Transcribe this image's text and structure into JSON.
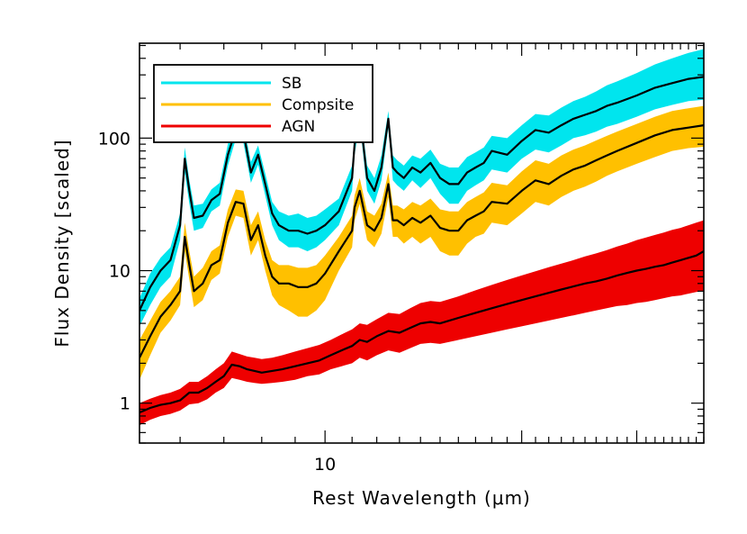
{
  "chart_data": {
    "type": "line",
    "xlabel": "Rest Wavelength (μm)",
    "ylabel": "Flux Density [scaled]",
    "x_scale": "log",
    "y_scale": "log",
    "xlim": [
      5.2,
      38
    ],
    "ylim": [
      0.5,
      520
    ],
    "x_tick_labels": [
      {
        "value": 10,
        "label": "10"
      }
    ],
    "y_tick_labels": [
      {
        "value": 1,
        "label": "1"
      },
      {
        "value": 10,
        "label": "10"
      },
      {
        "value": 100,
        "label": "100"
      }
    ],
    "grid": false,
    "legend_position": "top-left",
    "series": [
      {
        "name": "SB",
        "color": "#00e5ee",
        "line_color": "#000000",
        "x": [
          5.2,
          5.4,
          5.6,
          5.8,
          6.0,
          6.1,
          6.2,
          6.3,
          6.5,
          6.7,
          6.9,
          7.1,
          7.3,
          7.5,
          7.7,
          7.9,
          8.1,
          8.3,
          8.5,
          8.8,
          9.1,
          9.4,
          9.7,
          10.0,
          10.5,
          11.0,
          11.1,
          11.3,
          11.6,
          11.9,
          12.2,
          12.5,
          12.7,
          12.9,
          13.2,
          13.6,
          14.0,
          14.5,
          15.0,
          15.5,
          16.0,
          16.5,
          17.0,
          17.5,
          18.0,
          19.0,
          20.0,
          21.0,
          22.0,
          23.0,
          24.0,
          25.0,
          26.0,
          27.0,
          28.0,
          30.0,
          32.0,
          34.0,
          36.0,
          38.0
        ],
        "values": [
          5,
          7.5,
          10,
          12,
          22,
          70,
          40,
          25,
          26,
          34,
          38,
          75,
          115,
          110,
          55,
          75,
          45,
          27,
          22,
          20,
          20,
          19,
          20,
          22,
          28,
          50,
          90,
          155,
          50,
          40,
          60,
          140,
          60,
          55,
          50,
          60,
          55,
          65,
          50,
          45,
          45,
          55,
          60,
          65,
          80,
          75,
          95,
          115,
          110,
          125,
          140,
          150,
          160,
          175,
          185,
          210,
          240,
          260,
          280,
          290
        ],
        "band_lower": [
          3.8,
          5.5,
          7.5,
          9,
          17,
          55,
          32,
          20,
          21,
          28,
          31,
          62,
          98,
          92,
          46,
          63,
          37,
          22,
          17,
          15,
          15,
          14,
          15,
          17,
          22,
          40,
          75,
          130,
          40,
          32,
          48,
          120,
          48,
          44,
          40,
          48,
          42,
          50,
          38,
          32,
          32,
          40,
          44,
          48,
          58,
          55,
          70,
          82,
          78,
          88,
          100,
          105,
          112,
          122,
          128,
          145,
          165,
          178,
          190,
          195
        ],
        "band_upper": [
          6.2,
          9.5,
          12.5,
          15,
          27,
          85,
          48,
          31,
          32,
          41,
          46,
          90,
          132,
          128,
          66,
          88,
          54,
          33,
          28,
          26,
          27,
          25,
          26,
          29,
          35,
          62,
          105,
          175,
          62,
          50,
          74,
          160,
          74,
          68,
          62,
          74,
          70,
          82,
          64,
          60,
          60,
          72,
          78,
          85,
          104,
          100,
          125,
          152,
          148,
          170,
          190,
          205,
          225,
          250,
          268,
          310,
          360,
          400,
          440,
          470
        ]
      },
      {
        "name": "Compsite",
        "color": "#ffc000",
        "line_color": "#000000",
        "x": [
          5.2,
          5.4,
          5.6,
          5.8,
          6.0,
          6.1,
          6.2,
          6.3,
          6.5,
          6.7,
          6.9,
          7.1,
          7.3,
          7.5,
          7.7,
          7.9,
          8.1,
          8.3,
          8.5,
          8.8,
          9.1,
          9.4,
          9.7,
          10.0,
          10.5,
          11.0,
          11.1,
          11.3,
          11.6,
          11.9,
          12.2,
          12.5,
          12.7,
          12.9,
          13.2,
          13.6,
          14.0,
          14.5,
          15.0,
          15.5,
          16.0,
          16.5,
          17.0,
          17.5,
          18.0,
          19.0,
          20.0,
          21.0,
          22.0,
          23.0,
          24.0,
          25.0,
          26.0,
          27.0,
          28.0,
          30.0,
          32.0,
          34.0,
          36.0,
          38.0
        ],
        "values": [
          2.2,
          3.2,
          4.5,
          5.5,
          7,
          18,
          11,
          7,
          8,
          11,
          12,
          23,
          33,
          32,
          17,
          22,
          13,
          9,
          8,
          8,
          7.5,
          7.5,
          8,
          9.5,
          14,
          20,
          30,
          40,
          22,
          20,
          25,
          45,
          24,
          24,
          22,
          25,
          23,
          26,
          21,
          20,
          20,
          24,
          26,
          28,
          33,
          32,
          40,
          48,
          45,
          52,
          58,
          62,
          68,
          74,
          80,
          92,
          105,
          115,
          120,
          125
        ],
        "band_lower": [
          1.5,
          2.3,
          3.4,
          4.2,
          5.5,
          14,
          8.5,
          5.3,
          6,
          8.5,
          9.5,
          18,
          26,
          25,
          13,
          17,
          10,
          6.5,
          5.5,
          5,
          4.5,
          4.5,
          5,
          6,
          10,
          15,
          24,
          32,
          17,
          15,
          19,
          36,
          18,
          18,
          16,
          18,
          16,
          18,
          14,
          13,
          13,
          16,
          18,
          19,
          23,
          22,
          27,
          33,
          31,
          36,
          40,
          43,
          47,
          52,
          56,
          64,
          72,
          80,
          84,
          86
        ],
        "band_upper": [
          3,
          4.2,
          5.8,
          7,
          9,
          23,
          14,
          9,
          10.5,
          14,
          15.5,
          29,
          41,
          40,
          22,
          28,
          17,
          12,
          11,
          11,
          10.5,
          10.5,
          11,
          13,
          18,
          26,
          37,
          50,
          28,
          26,
          32,
          55,
          31,
          31,
          29,
          33,
          31,
          35,
          29,
          28,
          28,
          33,
          36,
          39,
          46,
          44,
          56,
          68,
          64,
          74,
          82,
          88,
          96,
          104,
          112,
          128,
          145,
          160,
          168,
          175
        ]
      },
      {
        "name": "AGN",
        "color": "#ee0000",
        "line_color": "#000000",
        "x": [
          5.2,
          5.4,
          5.6,
          5.8,
          6.0,
          6.2,
          6.4,
          6.6,
          6.8,
          7.0,
          7.2,
          7.4,
          7.6,
          7.8,
          8.0,
          8.3,
          8.6,
          9.0,
          9.4,
          9.8,
          10.2,
          10.6,
          11.0,
          11.3,
          11.6,
          12.0,
          12.5,
          13.0,
          13.5,
          14.0,
          14.5,
          15.0,
          16.0,
          17.0,
          18.0,
          19.0,
          20.0,
          21.0,
          22.0,
          23.0,
          24.0,
          25.0,
          26.0,
          27.0,
          28.0,
          29.0,
          30.0,
          31.0,
          32.0,
          33.0,
          34.0,
          35.0,
          36.0,
          37.0,
          38.0
        ],
        "values": [
          0.85,
          0.92,
          0.97,
          1.0,
          1.05,
          1.2,
          1.2,
          1.3,
          1.45,
          1.6,
          1.95,
          1.9,
          1.8,
          1.75,
          1.7,
          1.75,
          1.8,
          1.9,
          2.0,
          2.1,
          2.3,
          2.5,
          2.7,
          3.0,
          2.9,
          3.2,
          3.5,
          3.4,
          3.7,
          4.0,
          4.1,
          4.0,
          4.4,
          4.8,
          5.2,
          5.6,
          6.0,
          6.4,
          6.8,
          7.2,
          7.6,
          8.0,
          8.3,
          8.7,
          9.2,
          9.6,
          10.0,
          10.3,
          10.7,
          11.0,
          11.5,
          12.0,
          12.5,
          13.0,
          14.0
        ],
        "band_lower": [
          0.68,
          0.75,
          0.8,
          0.83,
          0.88,
          0.98,
          1.0,
          1.07,
          1.2,
          1.3,
          1.55,
          1.5,
          1.45,
          1.42,
          1.4,
          1.42,
          1.45,
          1.5,
          1.6,
          1.65,
          1.8,
          1.9,
          2.0,
          2.2,
          2.1,
          2.3,
          2.5,
          2.4,
          2.6,
          2.8,
          2.85,
          2.8,
          3.0,
          3.2,
          3.4,
          3.6,
          3.8,
          4.0,
          4.2,
          4.4,
          4.6,
          4.8,
          5.0,
          5.2,
          5.4,
          5.5,
          5.7,
          5.8,
          6.0,
          6.2,
          6.4,
          6.5,
          6.7,
          6.9,
          7.0
        ],
        "band_upper": [
          1.0,
          1.08,
          1.15,
          1.2,
          1.28,
          1.45,
          1.45,
          1.6,
          1.8,
          2.0,
          2.45,
          2.35,
          2.25,
          2.2,
          2.15,
          2.2,
          2.3,
          2.45,
          2.6,
          2.75,
          3.0,
          3.3,
          3.6,
          4.0,
          3.9,
          4.3,
          4.8,
          4.7,
          5.2,
          5.7,
          5.9,
          5.8,
          6.4,
          7.1,
          7.8,
          8.5,
          9.2,
          9.9,
          10.6,
          11.3,
          12.0,
          12.8,
          13.5,
          14.3,
          15.2,
          16.0,
          17.0,
          17.8,
          18.6,
          19.4,
          20.3,
          21.0,
          22.0,
          23.0,
          24.0
        ]
      }
    ]
  }
}
